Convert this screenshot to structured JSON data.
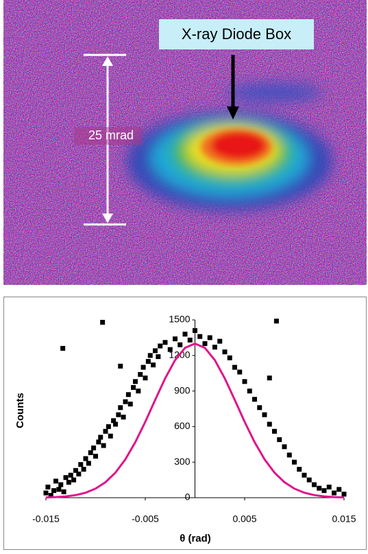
{
  "image": {
    "arrow_label": "X-ray Diode Box",
    "scale_label": "25 mrad"
  },
  "chart_data": {
    "type": "scatter",
    "xlabel": "θ (rad)",
    "ylabel": "Counts",
    "xlim": [
      -0.015,
      0.015
    ],
    "ylim": [
      0,
      1500
    ],
    "xticks": [
      -0.015,
      -0.005,
      0.005,
      0.015
    ],
    "yticks": [
      0,
      300,
      600,
      900,
      1200,
      1500
    ],
    "series": [
      {
        "mark": "square",
        "color": "#000000",
        "x": [
          -0.015,
          -0.0148,
          -0.0145,
          -0.0142,
          -0.014,
          -0.0137,
          -0.0135,
          -0.0132,
          -0.013,
          -0.0127,
          -0.0125,
          -0.0122,
          -0.012,
          -0.0117,
          -0.0115,
          -0.0112,
          -0.011,
          -0.0107,
          -0.0105,
          -0.0102,
          -0.01,
          -0.0097,
          -0.0095,
          -0.0092,
          -0.009,
          -0.0087,
          -0.0085,
          -0.0082,
          -0.008,
          -0.0077,
          -0.0075,
          -0.0072,
          -0.007,
          -0.0067,
          -0.0065,
          -0.0062,
          -0.006,
          -0.0057,
          -0.0055,
          -0.0052,
          -0.005,
          -0.0047,
          -0.0045,
          -0.0042,
          -0.004,
          -0.0037,
          -0.0035,
          -0.003,
          -0.0025,
          -0.002,
          -0.0015,
          -0.001,
          -0.0005,
          0,
          0.0005,
          0.001,
          0.0015,
          0.002,
          0.0025,
          0.003,
          0.0035,
          0.004,
          0.0045,
          0.005,
          0.0055,
          0.006,
          0.0065,
          0.007,
          0.0075,
          0.008,
          0.0085,
          0.009,
          0.0095,
          0.01,
          0.0105,
          0.011,
          0.0115,
          0.012,
          0.0125,
          0.013,
          0.0135,
          0.014,
          0.0145,
          0.015,
          -0.0133,
          -0.0093,
          -0.0075,
          0.0082,
          0.0075
        ],
        "values": [
          40,
          90,
          20,
          60,
          140,
          70,
          110,
          50,
          170,
          130,
          190,
          150,
          230,
          200,
          280,
          240,
          330,
          290,
          380,
          420,
          350,
          470,
          510,
          440,
          560,
          600,
          520,
          650,
          620,
          700,
          760,
          680,
          810,
          870,
          790,
          930,
          980,
          900,
          1040,
          1100,
          1010,
          1150,
          1200,
          1120,
          1240,
          1190,
          1280,
          1310,
          1250,
          1340,
          1290,
          1380,
          1330,
          1410,
          1360,
          1300,
          1350,
          1270,
          1320,
          1230,
          1180,
          1100,
          1060,
          980,
          900,
          830,
          760,
          700,
          620,
          560,
          490,
          430,
          360,
          300,
          240,
          190,
          150,
          110,
          80,
          60,
          90,
          40,
          70,
          30,
          1260,
          1480,
          1110,
          1490,
          1010
        ]
      },
      {
        "mark": "line",
        "color": "#e0148c",
        "x": [
          -0.015,
          -0.014,
          -0.013,
          -0.012,
          -0.011,
          -0.01,
          -0.009,
          -0.008,
          -0.007,
          -0.006,
          -0.005,
          -0.004,
          -0.003,
          -0.002,
          -0.001,
          0,
          0.001,
          0.002,
          0.003,
          0.004,
          0.005,
          0.006,
          0.007,
          0.008,
          0.009,
          0.01,
          0.011,
          0.012,
          0.013,
          0.014,
          0.015
        ],
        "values": [
          2,
          5,
          11,
          22,
          42,
          77,
          131,
          212,
          324,
          469,
          640,
          826,
          1007,
          1161,
          1264,
          1300,
          1264,
          1161,
          1007,
          826,
          640,
          469,
          324,
          212,
          131,
          77,
          42,
          22,
          11,
          5,
          2
        ]
      }
    ]
  }
}
